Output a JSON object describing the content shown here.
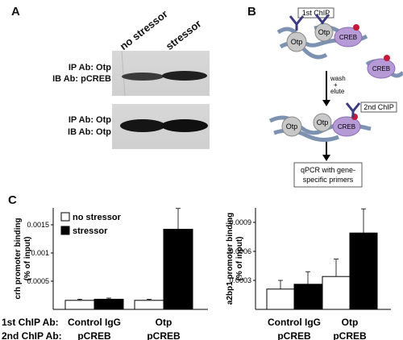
{
  "panel_a": {
    "letter": "A",
    "lanes": [
      "no stressor",
      "stressor"
    ],
    "blot1": {
      "line1": "IP Ab: Otp",
      "line2": "IB Ab: pCREB"
    },
    "blot2": {
      "line1": "IP Ab: Otp",
      "line2": "IB Ab: Otp"
    }
  },
  "panel_b": {
    "letter": "B",
    "first_chip": "1st ChIP",
    "second_chip": "2nd ChIP",
    "otp": "Otp",
    "creb": "CREB",
    "wash": "wash",
    "plus": "+",
    "elute": "elute",
    "qpcr_line1": "qPCR with gene-",
    "qpcr_line2": "specific primers"
  },
  "panel_c": {
    "letter": "C",
    "row1_label": "1st ChIP Ab:",
    "row2_label": "2nd ChIP Ab:",
    "legend": {
      "no_stressor": "no stressor",
      "stressor": "stressor"
    }
  },
  "colors": {
    "stressor": "#000000",
    "no_stressor": "#ffffff",
    "creb": "#b59ad6",
    "dna": "#7f97b7",
    "otp": "#c8c8c8"
  },
  "chart_data": [
    {
      "type": "bar",
      "ylabel_line1": "crh promoter binding",
      "ylabel_line2": "(% of input)",
      "ylim": [
        0,
        0.0018
      ],
      "yticks": [
        "0.0005",
        "0.001",
        "0.0015"
      ],
      "categories": [
        {
          "first": "Control IgG",
          "second": "pCREB"
        },
        {
          "first": "Otp",
          "second": "pCREB"
        }
      ],
      "series": [
        {
          "name": "no stressor",
          "values": [
            0.00016,
            0.00016
          ],
          "errors": [
            2e-05,
            2e-05
          ]
        },
        {
          "name": "stressor",
          "values": [
            0.00018,
            0.00142
          ],
          "errors": [
            2e-05,
            0.00037
          ]
        }
      ]
    },
    {
      "type": "bar",
      "ylabel_line1": "a2bp1 promoter binding",
      "ylabel_line2": "(% of input)",
      "ylim": [
        0,
        0.00105
      ],
      "yticks": [
        "0.0003",
        "0.0006",
        "0.0009"
      ],
      "categories": [
        {
          "first": "Control IgG",
          "second": "pCREB"
        },
        {
          "first": "Otp",
          "second": "pCREB"
        }
      ],
      "series": [
        {
          "name": "no stressor",
          "values": [
            0.00021,
            0.00034
          ],
          "errors": [
            9e-05,
            0.00018
          ]
        },
        {
          "name": "stressor",
          "values": [
            0.00026,
            0.00079
          ],
          "errors": [
            0.00013,
            0.00025
          ]
        }
      ]
    }
  ]
}
